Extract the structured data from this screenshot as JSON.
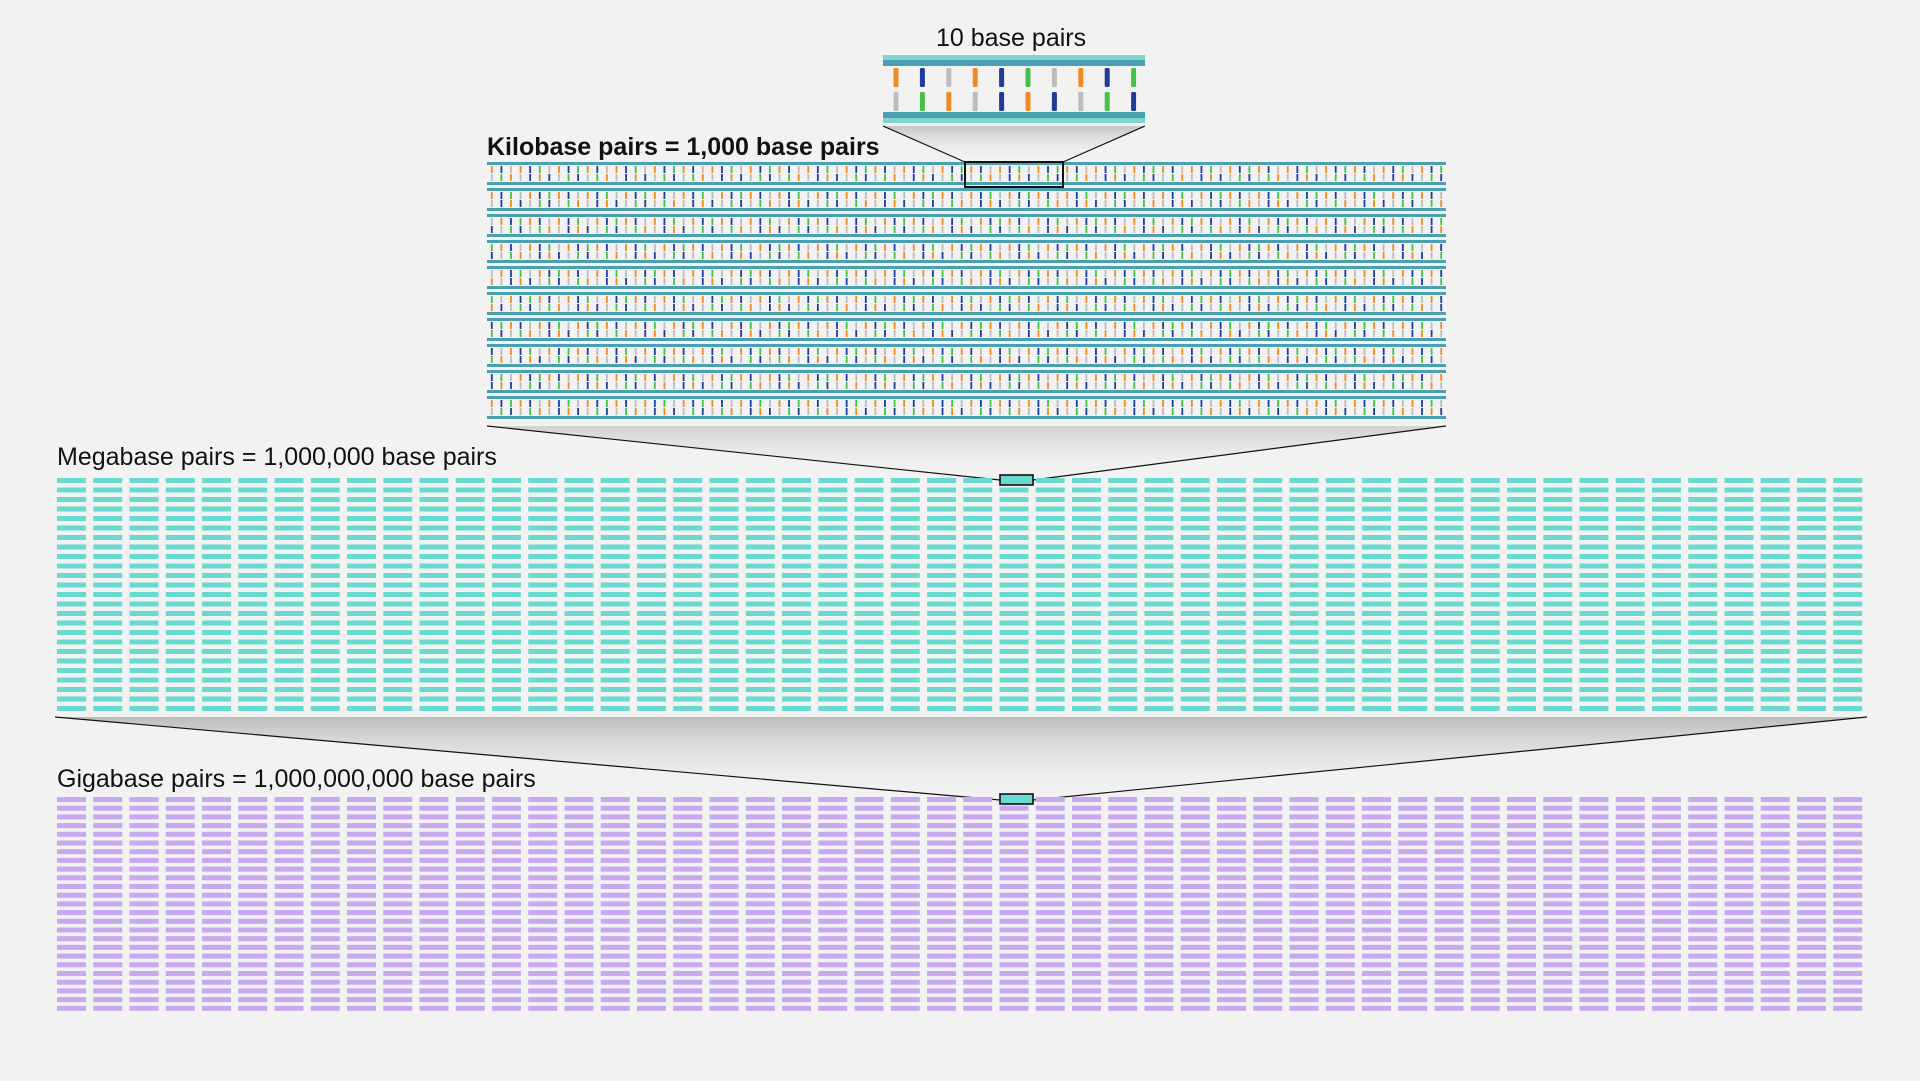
{
  "labels": {
    "ten_bp": "10 base pairs",
    "kilobase": "Kilobase pairs = 1,000 base pairs",
    "megabase": "Megabase pairs = 1,000,000 base pairs",
    "gigabase": "Gigabase pairs = 1,000,000,000 base pairs"
  },
  "colors": {
    "background": "#f2f2f2",
    "backbone": "#4a9fb0",
    "backbone_light": "#7fd6cf",
    "megabase_block": "#6ad9cf",
    "gigabase_block": "#c8a8ee",
    "outline": "#111111"
  },
  "ten_bp_strand": {
    "top_bases": [
      "#f08a24",
      "#1f3c99",
      "#bcbcbc",
      "#f08a24",
      "#1f3c99",
      "#43c04a",
      "#bcbcbc",
      "#f08a24",
      "#1f3c99",
      "#43c04a"
    ],
    "bottom_bases": [
      "#bcbcbc",
      "#43c04a",
      "#f08a24",
      "#bcbcbc",
      "#1f3c99",
      "#f08a24",
      "#1f3c99",
      "#bcbcbc",
      "#43c04a",
      "#1f3c99"
    ]
  }
}
